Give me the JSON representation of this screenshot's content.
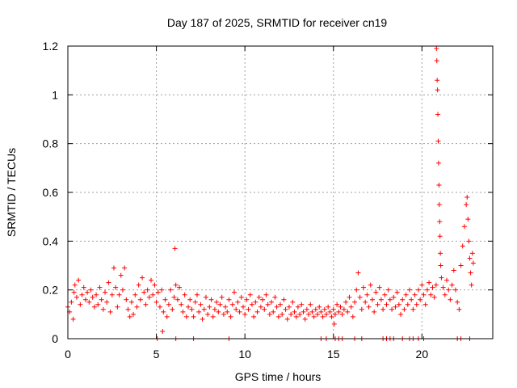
{
  "chart_data": {
    "type": "scatter",
    "title": "Day 187 of 2025, SRMTID for receiver cn19",
    "xlabel": "GPS time / hours",
    "ylabel": "SRMTID / TECUs",
    "xlim": [
      0,
      24
    ],
    "ylim": [
      0,
      1.2
    ],
    "xticks": [
      0,
      5,
      10,
      15,
      20
    ],
    "yticks": [
      0,
      0.2,
      0.4,
      0.6,
      0.8,
      1,
      1.2
    ],
    "xtick_labels": [
      "0",
      "5",
      "10",
      "15",
      "20"
    ],
    "ytick_labels": [
      "0",
      "0.2",
      "0.4",
      "0.6",
      "0.8",
      "1",
      "1.2"
    ],
    "grid": true,
    "marker": "+",
    "series": [
      {
        "name": "SRMTID",
        "color": "#ff0000",
        "points": [
          [
            0.0,
            0.13
          ],
          [
            0.1,
            0.11
          ],
          [
            0.2,
            0.15
          ],
          [
            0.3,
            0.08
          ],
          [
            0.35,
            0.19
          ],
          [
            0.4,
            0.22
          ],
          [
            0.5,
            0.17
          ],
          [
            0.6,
            0.24
          ],
          [
            0.7,
            0.14
          ],
          [
            0.8,
            0.18
          ],
          [
            0.9,
            0.21
          ],
          [
            1.0,
            0.16
          ],
          [
            1.1,
            0.19
          ],
          [
            1.2,
            0.15
          ],
          [
            1.3,
            0.2
          ],
          [
            1.4,
            0.17
          ],
          [
            1.5,
            0.13
          ],
          [
            1.6,
            0.18
          ],
          [
            1.7,
            0.14
          ],
          [
            1.8,
            0.21
          ],
          [
            1.9,
            0.16
          ],
          [
            2.0,
            0.12
          ],
          [
            2.1,
            0.19
          ],
          [
            2.2,
            0.15
          ],
          [
            2.3,
            0.23
          ],
          [
            2.4,
            0.11
          ],
          [
            2.5,
            0.18
          ],
          [
            2.6,
            0.29
          ],
          [
            2.7,
            0.21
          ],
          [
            2.8,
            0.13
          ],
          [
            2.9,
            0.18
          ],
          [
            3.0,
            0.26
          ],
          [
            3.1,
            0.2
          ],
          [
            3.2,
            0.29
          ],
          [
            3.3,
            0.16
          ],
          [
            3.4,
            0.12
          ],
          [
            3.5,
            0.09
          ],
          [
            3.6,
            0.15
          ],
          [
            3.7,
            0.1
          ],
          [
            3.8,
            0.18
          ],
          [
            3.9,
            0.13
          ],
          [
            4.0,
            0.22
          ],
          [
            4.1,
            0.16
          ],
          [
            4.2,
            0.25
          ],
          [
            4.3,
            0.19
          ],
          [
            4.4,
            0.14
          ],
          [
            4.5,
            0.2
          ],
          [
            4.6,
            0.17
          ],
          [
            4.7,
            0.24
          ],
          [
            4.8,
            0.18
          ],
          [
            4.9,
            0.22
          ],
          [
            5.0,
            0.15
          ],
          [
            5.1,
            0.19
          ],
          [
            5.2,
            0.13
          ],
          [
            5.3,
            0.2
          ],
          [
            5.35,
            0.03
          ],
          [
            5.4,
            0.11
          ],
          [
            5.5,
            0.16
          ],
          [
            5.6,
            0.09
          ],
          [
            5.7,
            0.14
          ],
          [
            5.8,
            0.2
          ],
          [
            5.9,
            0.12
          ],
          [
            6.0,
            0.17
          ],
          [
            6.05,
            0.37
          ],
          [
            6.1,
            0.22
          ],
          [
            6.2,
            0.16
          ],
          [
            6.3,
            0.21
          ],
          [
            6.4,
            0.14
          ],
          [
            6.5,
            0.11
          ],
          [
            6.6,
            0.18
          ],
          [
            6.7,
            0.09
          ],
          [
            6.8,
            0.13
          ],
          [
            6.9,
            0.16
          ],
          [
            7.0,
            0.12
          ],
          [
            7.1,
            0.09
          ],
          [
            7.2,
            0.15
          ],
          [
            7.3,
            0.18
          ],
          [
            7.4,
            0.11
          ],
          [
            7.5,
            0.14
          ],
          [
            7.6,
            0.08
          ],
          [
            7.7,
            0.12
          ],
          [
            7.8,
            0.17
          ],
          [
            7.9,
            0.1
          ],
          [
            8.0,
            0.13
          ],
          [
            8.1,
            0.16
          ],
          [
            8.2,
            0.09
          ],
          [
            8.3,
            0.12
          ],
          [
            8.4,
            0.15
          ],
          [
            8.5,
            0.11
          ],
          [
            8.6,
            0.14
          ],
          [
            8.7,
            0.17
          ],
          [
            8.8,
            0.1
          ],
          [
            8.9,
            0.13
          ],
          [
            9.0,
            0.11
          ],
          [
            9.1,
            0.16
          ],
          [
            9.2,
            0.09
          ],
          [
            9.3,
            0.14
          ],
          [
            9.4,
            0.19
          ],
          [
            9.5,
            0.12
          ],
          [
            9.6,
            0.15
          ],
          [
            9.7,
            0.11
          ],
          [
            9.8,
            0.17
          ],
          [
            9.9,
            0.13
          ],
          [
            10.0,
            0.1
          ],
          [
            10.1,
            0.16
          ],
          [
            10.2,
            0.12
          ],
          [
            10.3,
            0.18
          ],
          [
            10.4,
            0.14
          ],
          [
            10.5,
            0.09
          ],
          [
            10.6,
            0.15
          ],
          [
            10.7,
            0.11
          ],
          [
            10.8,
            0.17
          ],
          [
            10.9,
            0.13
          ],
          [
            11.0,
            0.16
          ],
          [
            11.1,
            0.12
          ],
          [
            11.2,
            0.18
          ],
          [
            11.3,
            0.14
          ],
          [
            11.4,
            0.1
          ],
          [
            11.5,
            0.15
          ],
          [
            11.6,
            0.11
          ],
          [
            11.7,
            0.17
          ],
          [
            11.8,
            0.13
          ],
          [
            11.9,
            0.09
          ],
          [
            12.0,
            0.14
          ],
          [
            12.1,
            0.1
          ],
          [
            12.2,
            0.16
          ],
          [
            12.3,
            0.12
          ],
          [
            12.4,
            0.08
          ],
          [
            12.5,
            0.13
          ],
          [
            12.6,
            0.1
          ],
          [
            12.7,
            0.15
          ],
          [
            12.8,
            0.11
          ],
          [
            12.9,
            0.09
          ],
          [
            13.0,
            0.13
          ],
          [
            13.1,
            0.1
          ],
          [
            13.2,
            0.14
          ],
          [
            13.3,
            0.11
          ],
          [
            13.4,
            0.08
          ],
          [
            13.5,
            0.12
          ],
          [
            13.6,
            0.1
          ],
          [
            13.7,
            0.14
          ],
          [
            13.8,
            0.11
          ],
          [
            13.9,
            0.09
          ],
          [
            14.0,
            0.12
          ],
          [
            14.1,
            0.1
          ],
          [
            14.2,
            0.13
          ],
          [
            14.3,
            0.11
          ],
          [
            14.4,
            0.09
          ],
          [
            14.5,
            0.12
          ],
          [
            14.6,
            0.1
          ],
          [
            14.7,
            0.13
          ],
          [
            14.8,
            0.11
          ],
          [
            14.9,
            0.09
          ],
          [
            15.0,
            0.12
          ],
          [
            15.05,
            0.06
          ],
          [
            15.1,
            0.1
          ],
          [
            15.2,
            0.14
          ],
          [
            15.3,
            0.11
          ],
          [
            15.4,
            0.13
          ],
          [
            15.5,
            0.1
          ],
          [
            15.6,
            0.12
          ],
          [
            15.7,
            0.15
          ],
          [
            15.8,
            0.11
          ],
          [
            15.9,
            0.17
          ],
          [
            16.0,
            0.13
          ],
          [
            16.1,
            0.09
          ],
          [
            16.2,
            0.15
          ],
          [
            16.3,
            0.2
          ],
          [
            16.4,
            0.27
          ],
          [
            16.5,
            0.17
          ],
          [
            16.6,
            0.12
          ],
          [
            16.7,
            0.21
          ],
          [
            16.8,
            0.15
          ],
          [
            16.9,
            0.18
          ],
          [
            17.0,
            0.13
          ],
          [
            17.1,
            0.22
          ],
          [
            17.2,
            0.16
          ],
          [
            17.3,
            0.11
          ],
          [
            17.4,
            0.19
          ],
          [
            17.5,
            0.14
          ],
          [
            17.6,
            0.21
          ],
          [
            17.7,
            0.16
          ],
          [
            17.8,
            0.12
          ],
          [
            17.9,
            0.18
          ],
          [
            18.0,
            0.14
          ],
          [
            18.1,
            0.2
          ],
          [
            18.2,
            0.16
          ],
          [
            18.3,
            0.12
          ],
          [
            18.4,
            0.17
          ],
          [
            18.5,
            0.13
          ],
          [
            18.6,
            0.19
          ],
          [
            18.7,
            0.14
          ],
          [
            18.8,
            0.1
          ],
          [
            18.9,
            0.16
          ],
          [
            19.0,
            0.12
          ],
          [
            19.1,
            0.18
          ],
          [
            19.2,
            0.14
          ],
          [
            19.3,
            0.2
          ],
          [
            19.4,
            0.16
          ],
          [
            19.5,
            0.12
          ],
          [
            19.6,
            0.18
          ],
          [
            19.7,
            0.14
          ],
          [
            19.8,
            0.2
          ],
          [
            19.9,
            0.16
          ],
          [
            20.0,
            0.22
          ],
          [
            20.1,
            0.18
          ],
          [
            20.2,
            0.14
          ],
          [
            20.3,
            0.2
          ],
          [
            20.4,
            0.23
          ],
          [
            20.5,
            0.18
          ],
          [
            20.6,
            0.21
          ],
          [
            20.7,
            0.17
          ],
          [
            20.8,
            0.22
          ],
          [
            20.82,
            1.19
          ],
          [
            20.84,
            1.14
          ],
          [
            20.86,
            1.06
          ],
          [
            20.88,
            1.02
          ],
          [
            20.9,
            0.92
          ],
          [
            20.92,
            0.81
          ],
          [
            20.94,
            0.72
          ],
          [
            20.96,
            0.63
          ],
          [
            20.98,
            0.55
          ],
          [
            21.0,
            0.48
          ],
          [
            21.02,
            0.42
          ],
          [
            21.04,
            0.35
          ],
          [
            21.06,
            0.3
          ],
          [
            21.1,
            0.25
          ],
          [
            21.2,
            0.21
          ],
          [
            21.3,
            0.18
          ],
          [
            21.4,
            0.24
          ],
          [
            21.5,
            0.2
          ],
          [
            21.6,
            0.16
          ],
          [
            21.7,
            0.22
          ],
          [
            21.8,
            0.28
          ],
          [
            21.9,
            0.2
          ],
          [
            22.0,
            0.15
          ],
          [
            22.1,
            0.12
          ],
          [
            22.2,
            0.3
          ],
          [
            22.3,
            0.38
          ],
          [
            22.4,
            0.46
          ],
          [
            22.5,
            0.55
          ],
          [
            22.55,
            0.58
          ],
          [
            22.6,
            0.49
          ],
          [
            22.65,
            0.4
          ],
          [
            22.7,
            0.33
          ],
          [
            22.75,
            0.27
          ],
          [
            22.8,
            0.22
          ],
          [
            22.85,
            0.35
          ],
          [
            22.9,
            0.31
          ],
          [
            5.05,
            0.0
          ],
          [
            6.1,
            0.0
          ],
          [
            7.1,
            0.0
          ],
          [
            9.1,
            0.0
          ],
          [
            14.3,
            0.0
          ],
          [
            14.6,
            0.0
          ],
          [
            15.1,
            0.0
          ],
          [
            15.3,
            0.0
          ],
          [
            15.5,
            0.0
          ],
          [
            16.2,
            0.0
          ],
          [
            16.6,
            0.0
          ],
          [
            17.8,
            0.0
          ],
          [
            18.0,
            0.0
          ],
          [
            18.2,
            0.0
          ],
          [
            18.4,
            0.0
          ],
          [
            18.9,
            0.0
          ],
          [
            19.3,
            0.0
          ],
          [
            19.5,
            0.0
          ],
          [
            19.8,
            0.0
          ],
          [
            20.1,
            0.0
          ],
          [
            22.0,
            0.0
          ],
          [
            22.2,
            0.0
          ],
          [
            22.7,
            0.0
          ]
        ]
      }
    ]
  }
}
